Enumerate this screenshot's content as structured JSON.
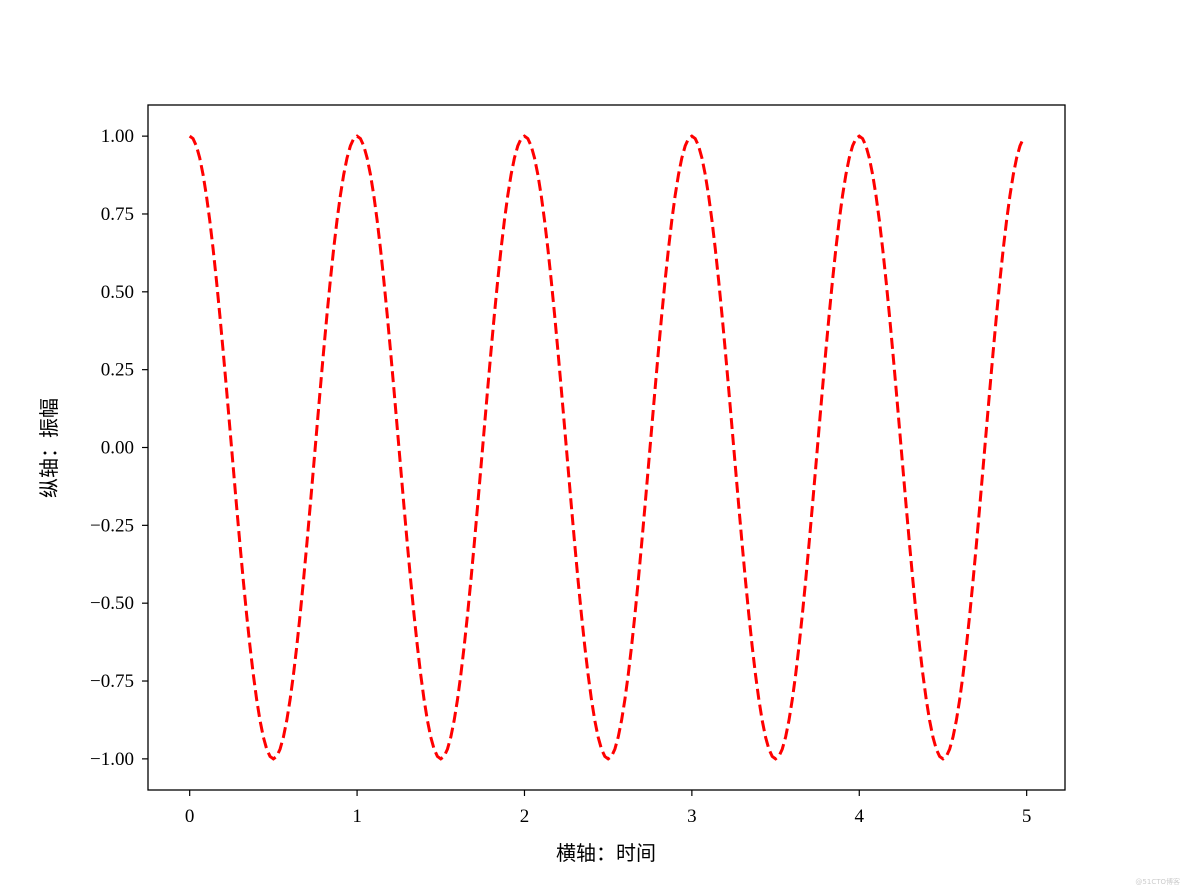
{
  "chart_data": {
    "type": "line",
    "title": "",
    "xlabel": "横轴：时间",
    "ylabel": "纵轴：振幅",
    "xlim": [
      -0.249,
      5.229
    ],
    "ylim": [
      -1.1,
      1.1
    ],
    "xticks": [
      0,
      1,
      2,
      3,
      4,
      5
    ],
    "xtick_labels": [
      "0",
      "1",
      "2",
      "3",
      "4",
      "5"
    ],
    "yticks": [
      1.0,
      0.75,
      0.5,
      0.25,
      0.0,
      -0.25,
      -0.5,
      -0.75,
      -1.0
    ],
    "ytick_labels": [
      "1.00",
      "0.75",
      "0.50",
      "0.25",
      "0.00",
      "−0.25",
      "−0.50",
      "−0.75",
      "−1.00"
    ],
    "grid": false,
    "series": [
      {
        "function": "y = cos(2πx)",
        "x_start": 0,
        "x_end": 4.98,
        "x_step": 0.02,
        "color": "#ff0000",
        "linestyle": "dashed"
      }
    ]
  },
  "watermark": "@51CTO博客"
}
